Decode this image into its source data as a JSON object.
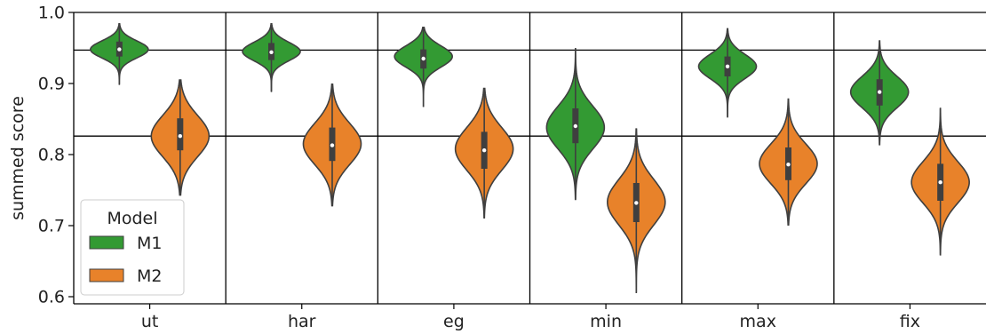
{
  "chart_data": {
    "type": "violin",
    "title": "",
    "xlabel": "",
    "ylabel": "summed score",
    "ylim": [
      0.59,
      1.0
    ],
    "yticks": [
      "0.6",
      "0.7",
      "0.8",
      "0.9",
      "1.0"
    ],
    "categories": [
      "ut",
      "har",
      "eg",
      "min",
      "max",
      "fix"
    ],
    "reference_lines": [
      0.947,
      0.826
    ],
    "grid": false,
    "legend": {
      "title": "Model",
      "placement": "lower-left"
    },
    "series": [
      {
        "name": "M1",
        "color": "#339a33",
        "stats": [
          {
            "min": 0.899,
            "max": 0.984,
            "q1": 0.938,
            "median": 0.948,
            "q3": 0.959,
            "mode": 0.948,
            "spread": 0.012
          },
          {
            "min": 0.889,
            "max": 0.984,
            "q1": 0.933,
            "median": 0.944,
            "q3": 0.957,
            "mode": 0.945,
            "spread": 0.013
          },
          {
            "min": 0.867,
            "max": 0.979,
            "q1": 0.921,
            "median": 0.935,
            "q3": 0.948,
            "mode": 0.938,
            "spread": 0.015
          },
          {
            "min": 0.737,
            "max": 0.949,
            "q1": 0.816,
            "median": 0.84,
            "q3": 0.865,
            "mode": 0.838,
            "spread": 0.03
          },
          {
            "min": 0.853,
            "max": 0.977,
            "q1": 0.91,
            "median": 0.924,
            "q3": 0.938,
            "mode": 0.924,
            "spread": 0.017
          },
          {
            "min": 0.814,
            "max": 0.96,
            "q1": 0.869,
            "median": 0.888,
            "q3": 0.906,
            "mode": 0.888,
            "spread": 0.022
          }
        ]
      },
      {
        "name": "M2",
        "color": "#e8822a",
        "stats": [
          {
            "min": 0.743,
            "max": 0.905,
            "q1": 0.806,
            "median": 0.826,
            "q3": 0.851,
            "mode": 0.826,
            "spread": 0.029
          },
          {
            "min": 0.728,
            "max": 0.899,
            "q1": 0.791,
            "median": 0.813,
            "q3": 0.838,
            "mode": 0.815,
            "spread": 0.029
          },
          {
            "min": 0.711,
            "max": 0.893,
            "q1": 0.78,
            "median": 0.806,
            "q3": 0.832,
            "mode": 0.808,
            "spread": 0.03
          },
          {
            "min": 0.606,
            "max": 0.836,
            "q1": 0.705,
            "median": 0.732,
            "q3": 0.76,
            "mode": 0.733,
            "spread": 0.032
          },
          {
            "min": 0.701,
            "max": 0.878,
            "q1": 0.764,
            "median": 0.786,
            "q3": 0.81,
            "mode": 0.787,
            "spread": 0.028
          },
          {
            "min": 0.659,
            "max": 0.865,
            "q1": 0.735,
            "median": 0.761,
            "q3": 0.787,
            "mode": 0.761,
            "spread": 0.029
          }
        ]
      }
    ]
  }
}
